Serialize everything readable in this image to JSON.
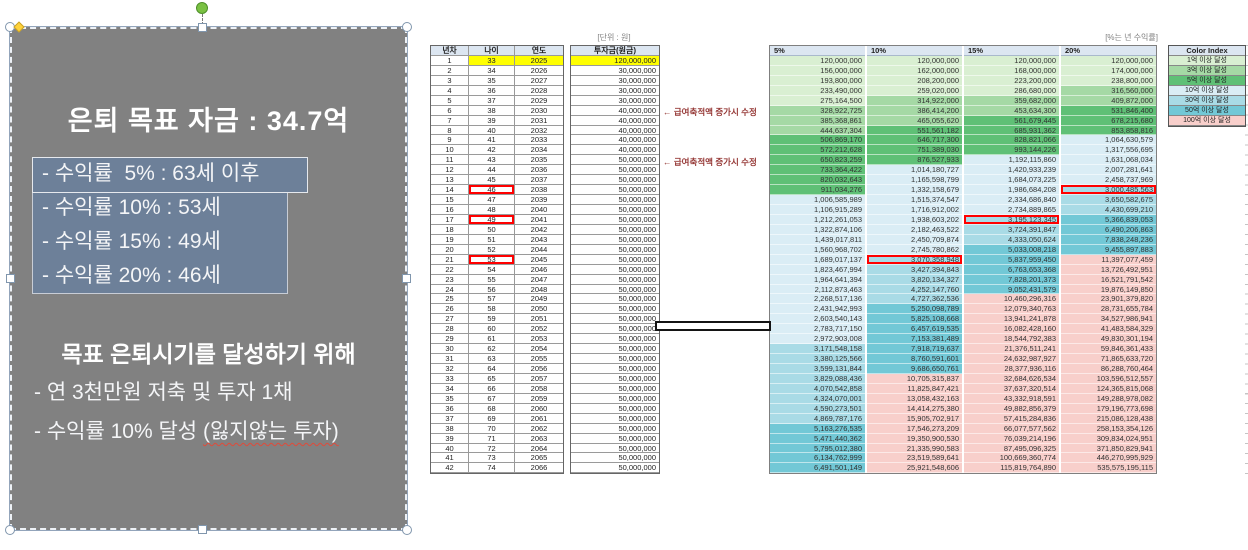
{
  "textbox": {
    "title": "은퇴 목표 자금 : 34.7억",
    "bullets": [
      "- 수익률  5% : 63세 이후",
      "- 수익률 10% : 53세",
      "- 수익률 15% : 49세",
      "- 수익률 20% : 46세"
    ],
    "goal_heading": "목표 은퇴시기를 달성하기 위해",
    "goal_line1": "- 연 3천만원 저축 및 투자 1채",
    "goal_line2_prefix": "- 수익률 10% 달성 ",
    "goal_line2_spellcheck": "(잃지않는 투자)"
  },
  "left_table": {
    "headers": [
      "년차",
      "나이",
      "연도"
    ],
    "rows": [
      [
        "1",
        "33",
        "2025"
      ],
      [
        "2",
        "34",
        "2026"
      ],
      [
        "3",
        "35",
        "2027"
      ],
      [
        "4",
        "36",
        "2028"
      ],
      [
        "5",
        "37",
        "2029"
      ],
      [
        "6",
        "38",
        "2030"
      ],
      [
        "7",
        "39",
        "2031"
      ],
      [
        "8",
        "40",
        "2032"
      ],
      [
        "9",
        "41",
        "2033"
      ],
      [
        "10",
        "42",
        "2034"
      ],
      [
        "11",
        "43",
        "2035"
      ],
      [
        "12",
        "44",
        "2036"
      ],
      [
        "13",
        "45",
        "2037"
      ],
      [
        "14",
        "46",
        "2038"
      ],
      [
        "15",
        "47",
        "2039"
      ],
      [
        "16",
        "48",
        "2040"
      ],
      [
        "17",
        "49",
        "2041"
      ],
      [
        "18",
        "50",
        "2042"
      ],
      [
        "19",
        "51",
        "2043"
      ],
      [
        "20",
        "52",
        "2044"
      ],
      [
        "21",
        "53",
        "2045"
      ],
      [
        "22",
        "54",
        "2046"
      ],
      [
        "23",
        "55",
        "2047"
      ],
      [
        "24",
        "56",
        "2048"
      ],
      [
        "25",
        "57",
        "2049"
      ],
      [
        "26",
        "58",
        "2050"
      ],
      [
        "27",
        "59",
        "2051"
      ],
      [
        "28",
        "60",
        "2052"
      ],
      [
        "29",
        "61",
        "2053"
      ],
      [
        "30",
        "62",
        "2054"
      ],
      [
        "31",
        "63",
        "2055"
      ],
      [
        "32",
        "64",
        "2056"
      ],
      [
        "33",
        "65",
        "2057"
      ],
      [
        "34",
        "66",
        "2058"
      ],
      [
        "35",
        "67",
        "2059"
      ],
      [
        "36",
        "68",
        "2060"
      ],
      [
        "37",
        "69",
        "2061"
      ],
      [
        "38",
        "70",
        "2062"
      ],
      [
        "39",
        "71",
        "2063"
      ],
      [
        "40",
        "72",
        "2064"
      ],
      [
        "41",
        "73",
        "2065"
      ],
      [
        "42",
        "74",
        "2066"
      ]
    ],
    "highlight_row": 1,
    "red_box_rows": [
      14,
      17,
      21
    ]
  },
  "invest_table": {
    "unit_label": "[단위 : 원]",
    "header": "투자금(원금)",
    "highlight_row": 1,
    "values": [
      "120,000,000",
      "30,000,000",
      "30,000,000",
      "30,000,000",
      "30,000,000",
      "40,000,000",
      "40,000,000",
      "40,000,000",
      "40,000,000",
      "40,000,000",
      "50,000,000",
      "50,000,000",
      "50,000,000",
      "50,000,000",
      "50,000,000",
      "50,000,000",
      "50,000,000",
      "50,000,000",
      "50,000,000",
      "50,000,000",
      "50,000,000",
      "50,000,000",
      "50,000,000",
      "50,000,000",
      "50,000,000",
      "50,000,000",
      "50,000,000",
      "50,000,000",
      "50,000,000",
      "50,000,000",
      "50,000,000",
      "50,000,000",
      "50,000,000",
      "50,000,000",
      "50,000,000",
      "50,000,000",
      "50,000,000",
      "50,000,000",
      "50,000,000",
      "50,000,000",
      "50,000,000",
      "50,000,000"
    ],
    "annotations": [
      {
        "row": 6,
        "text": "← 급여축적액 증가시 수정"
      },
      {
        "row": 11,
        "text": "← 급여축적액 증가시 수정"
      }
    ]
  },
  "main_table": {
    "note_label": "[%는 년 수익률]",
    "headers": [
      "5%",
      "10%",
      "15%",
      "20%"
    ],
    "rows": [
      [
        "120,000,000",
        "120,000,000",
        "120,000,000",
        "120,000,000"
      ],
      [
        "156,000,000",
        "162,000,000",
        "168,000,000",
        "174,000,000"
      ],
      [
        "193,800,000",
        "208,200,000",
        "223,200,000",
        "238,800,000"
      ],
      [
        "233,490,000",
        "259,020,000",
        "286,680,000",
        "316,560,000"
      ],
      [
        "275,164,500",
        "314,922,000",
        "359,682,000",
        "409,872,000"
      ],
      [
        "328,922,725",
        "386,414,200",
        "453,634,300",
        "531,846,400"
      ],
      [
        "385,368,861",
        "465,055,620",
        "561,679,445",
        "678,215,680"
      ],
      [
        "444,637,304",
        "551,561,182",
        "685,931,362",
        "853,858,816"
      ],
      [
        "506,869,170",
        "646,717,300",
        "828,821,066",
        "1,064,630,579"
      ],
      [
        "572,212,628",
        "751,389,030",
        "993,144,226",
        "1,317,556,695"
      ],
      [
        "650,823,259",
        "876,527,933",
        "1,192,115,860",
        "1,631,068,034"
      ],
      [
        "733,364,422",
        "1,014,180,727",
        "1,420,933,239",
        "2,007,281,641"
      ],
      [
        "820,032,643",
        "1,165,598,799",
        "1,684,073,225",
        "2,458,737,969"
      ],
      [
        "911,034,276",
        "1,332,158,679",
        "1,986,684,208",
        "3,000,485,563"
      ],
      [
        "1,006,585,989",
        "1,515,374,547",
        "2,334,686,840",
        "3,650,582,675"
      ],
      [
        "1,106,915,289",
        "1,716,912,002",
        "2,734,889,865",
        "4,430,699,210"
      ],
      [
        "1,212,261,053",
        "1,938,603,202",
        "3,195,123,345",
        "5,366,839,053"
      ],
      [
        "1,322,874,106",
        "2,182,463,522",
        "3,724,391,847",
        "6,490,206,863"
      ],
      [
        "1,439,017,811",
        "2,450,709,874",
        "4,333,050,624",
        "7,838,248,236"
      ],
      [
        "1,560,968,702",
        "2,745,780,862",
        "5,033,008,218",
        "9,455,897,883"
      ],
      [
        "1,689,017,137",
        "3,070,358,948",
        "5,837,959,450",
        "11,397,077,459"
      ],
      [
        "1,823,467,994",
        "3,427,394,843",
        "6,763,653,368",
        "13,726,492,951"
      ],
      [
        "1,964,641,394",
        "3,820,134,327",
        "7,828,201,373",
        "16,521,791,542"
      ],
      [
        "2,112,873,463",
        "4,252,147,760",
        "9,052,431,579",
        "19,876,149,850"
      ],
      [
        "2,268,517,136",
        "4,727,362,536",
        "10,460,296,316",
        "23,901,379,820"
      ],
      [
        "2,431,942,993",
        "5,250,098,789",
        "12,079,340,763",
        "28,731,655,784"
      ],
      [
        "2,603,540,143",
        "5,825,108,668",
        "13,941,241,878",
        "34,527,986,941"
      ],
      [
        "2,783,717,150",
        "6,457,619,535",
        "16,082,428,160",
        "41,483,584,329"
      ],
      [
        "2,972,903,008",
        "7,153,381,489",
        "18,544,792,383",
        "49,830,301,194"
      ],
      [
        "3,171,548,158",
        "7,918,719,637",
        "21,376,511,241",
        "59,846,361,433"
      ],
      [
        "3,380,125,566",
        "8,760,591,601",
        "24,632,987,927",
        "71,865,633,720"
      ],
      [
        "3,599,131,844",
        "9,686,650,761",
        "28,377,936,116",
        "86,288,760,464"
      ],
      [
        "3,829,088,436",
        "10,705,315,837",
        "32,684,626,534",
        "103,596,512,557"
      ],
      [
        "4,070,542,858",
        "11,825,847,421",
        "37,637,320,514",
        "124,365,815,068"
      ],
      [
        "4,324,070,001",
        "13,058,432,163",
        "43,332,918,591",
        "149,288,978,082"
      ],
      [
        "4,590,273,501",
        "14,414,275,380",
        "49,882,856,379",
        "179,196,773,698"
      ],
      [
        "4,869,787,176",
        "15,905,702,917",
        "57,415,284,836",
        "215,086,128,438"
      ],
      [
        "5,163,276,535",
        "17,546,273,209",
        "66,077,577,562",
        "258,153,354,126"
      ],
      [
        "5,471,440,362",
        "19,350,900,530",
        "76,039,214,196",
        "309,834,024,951"
      ],
      [
        "5,795,012,380",
        "21,335,990,583",
        "87,495,096,325",
        "371,850,829,941"
      ],
      [
        "6,134,762,999",
        "23,519,589,641",
        "100,669,360,774",
        "446,270,995,929"
      ],
      [
        "6,491,501,149",
        "25,921,548,606",
        "115,819,764,890",
        "535,575,195,115"
      ]
    ],
    "red_cells": [
      {
        "row": 14,
        "col": 4
      },
      {
        "row": 17,
        "col": 3
      },
      {
        "row": 21,
        "col": 2
      }
    ]
  },
  "color_index": {
    "title": "Color Index",
    "entries": [
      {
        "label": "1억 이상 달성",
        "min": 100000000,
        "color": "#d9efd2"
      },
      {
        "label": "3억 이상 달성",
        "min": 300000000,
        "color": "#a5d9a5"
      },
      {
        "label": "5억 이상 달성",
        "min": 500000000,
        "color": "#5fc076"
      },
      {
        "label": "10억 이상 달성",
        "min": 1000000000,
        "color": "#daedf5"
      },
      {
        "label": "30억 이상 달성",
        "min": 3000000000,
        "color": "#a9dbe6"
      },
      {
        "label": "50억 이상 달성",
        "min": 5000000000,
        "color": "#72c8d6"
      },
      {
        "label": "100억 이상 달성",
        "min": 10000000000,
        "color": "#f8cfcb"
      }
    ]
  },
  "colors": {
    "header_blue": "#dce6f1",
    "highlight_yellow": "#ffff00",
    "red_box": "#ff0000",
    "annotation_red": "#953735",
    "textbox_gray": "#818181",
    "bullet_box_fill": "#6d8099"
  }
}
